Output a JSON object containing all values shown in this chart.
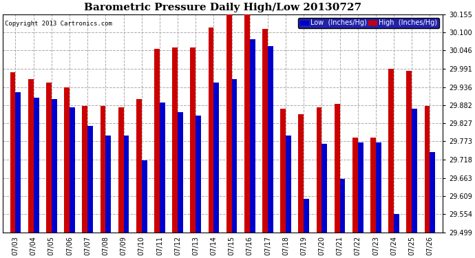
{
  "title": "Barometric Pressure Daily High/Low 20130727",
  "copyright": "Copyright 2013 Cartronics.com",
  "dates": [
    "07/03",
    "07/04",
    "07/05",
    "07/06",
    "07/07",
    "07/08",
    "07/09",
    "07/10",
    "07/11",
    "07/12",
    "07/13",
    "07/14",
    "07/15",
    "07/16",
    "07/17",
    "07/18",
    "07/19",
    "07/20",
    "07/21",
    "07/22",
    "07/23",
    "07/24",
    "07/25",
    "07/26"
  ],
  "high_values": [
    29.98,
    29.96,
    29.95,
    29.935,
    29.88,
    29.88,
    29.875,
    29.9,
    30.05,
    30.055,
    30.055,
    30.115,
    30.155,
    30.155,
    30.11,
    29.87,
    29.855,
    29.875,
    29.885,
    29.785,
    29.785,
    29.99,
    29.985,
    29.88
  ],
  "low_values": [
    29.92,
    29.905,
    29.9,
    29.875,
    29.82,
    29.79,
    29.79,
    29.715,
    29.89,
    29.86,
    29.85,
    29.95,
    29.96,
    30.08,
    30.06,
    29.79,
    29.6,
    29.765,
    29.66,
    29.77,
    29.77,
    29.555,
    29.87,
    29.74
  ],
  "low_color": "#0000cc",
  "high_color": "#cc0000",
  "ylim_min": 29.499,
  "ylim_max": 30.155,
  "yticks": [
    29.499,
    29.554,
    29.609,
    29.663,
    29.718,
    29.773,
    29.827,
    29.882,
    29.936,
    29.991,
    30.046,
    30.1,
    30.155
  ],
  "background_color": "#ffffff",
  "legend_low_label": "Low  (Inches/Hg)",
  "legend_high_label": "High  (Inches/Hg)",
  "bar_width": 0.3
}
